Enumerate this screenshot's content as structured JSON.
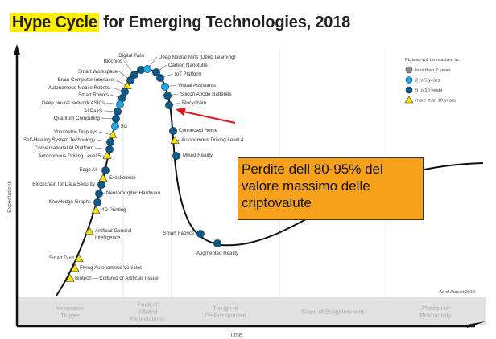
{
  "title": {
    "highlight": "Hype Cycle",
    "rest": " for Emerging Technologies, 2018"
  },
  "axes": {
    "y_label": "Expectations",
    "x_label": "Time"
  },
  "as_of": "As of August 2018",
  "phases": [
    [
      "Innovation",
      "Trigger"
    ],
    [
      "Peak of",
      "Inflated",
      "Expectations"
    ],
    [
      "Trough of",
      "Disillusionment"
    ],
    [
      "Slope of Enlightenment"
    ],
    [
      "Plateau of",
      "Productivity"
    ]
  ],
  "legend": {
    "title": "Plateau will be reached in:",
    "items": [
      {
        "label": "less than 2 years",
        "shape": "circle",
        "color": "#8a8d90"
      },
      {
        "label": "2 to 5 years",
        "shape": "circle",
        "color": "#1ea7e8"
      },
      {
        "label": "5 to 10 years",
        "shape": "circle",
        "color": "#0b5a8a"
      },
      {
        "label": "more than 10 years",
        "shape": "triangle",
        "color": "#f5e400"
      }
    ]
  },
  "technologies": [
    {
      "label": "Digital Twin",
      "plateau": "5 to 10 years"
    },
    {
      "label": "Biochips",
      "plateau": "5 to 10 years"
    },
    {
      "label": "Smart Workspace",
      "plateau": "5 to 10 years"
    },
    {
      "label": "Brain-Computer Interface",
      "plateau": "more than 10 years"
    },
    {
      "label": "Autonomous Mobile Robots",
      "plateau": "5 to 10 years"
    },
    {
      "label": "Smart Robots",
      "plateau": "5 to 10 years"
    },
    {
      "label": "Deep Neural Network ASICs",
      "plateau": "2 to 5 years"
    },
    {
      "label": "AI PaaS",
      "plateau": "5 to 10 years"
    },
    {
      "label": "Quantum Computing",
      "plateau": "5 to 10 years"
    },
    {
      "label": "5G",
      "plateau": "2 to 5 years"
    },
    {
      "label": "Volumetric Displays",
      "plateau": "more than 10 years"
    },
    {
      "label": "Self-Healing System Technology",
      "plateau": "5 to 10 years"
    },
    {
      "label": "Conversational AI Platform",
      "plateau": "5 to 10 years"
    },
    {
      "label": "Autonomous Driving Level 5",
      "plateau": "more than 10 years"
    },
    {
      "label": "Edge AI",
      "plateau": "5 to 10 years"
    },
    {
      "label": "Exoskeleton",
      "plateau": "more than 10 years"
    },
    {
      "label": "Blockchain for Data Security",
      "plateau": "5 to 10 years"
    },
    {
      "label": "Neuromorphic Hardware",
      "plateau": "5 to 10 years"
    },
    {
      "label": "Knowledge Graphs",
      "plateau": "5 to 10 years"
    },
    {
      "label": "4D Printing",
      "plateau": "more than 10 years"
    },
    {
      "label": "Artificial General Intelligence",
      "plateau": "more than 10 years"
    },
    {
      "label": "Smart Dust",
      "plateau": "more than 10 years"
    },
    {
      "label": "Flying Autonomous Vehicles",
      "plateau": "more than 10 years"
    },
    {
      "label": "Biotech — Cultured or Artificial Tissue",
      "plateau": "more than 10 years"
    },
    {
      "label": "Deep Neural Nets (Deep Learning)",
      "plateau": "2 to 5 years"
    },
    {
      "label": "Carbon Nanotube",
      "plateau": "5 to 10 years"
    },
    {
      "label": "IoT Platform",
      "plateau": "5 to 10 years"
    },
    {
      "label": "Virtual Assistants",
      "plateau": "2 to 5 years"
    },
    {
      "label": "Silicon Anode Batteries",
      "plateau": "5 to 10 years"
    },
    {
      "label": "Blockchain",
      "plateau": "5 to 10 years"
    },
    {
      "label": "Connected Home",
      "plateau": "5 to 10 years"
    },
    {
      "label": "Autonomous Driving Level 4",
      "plateau": "more than 10 years"
    },
    {
      "label": "Mixed Reality",
      "plateau": "5 to 10 years"
    },
    {
      "label": "Smart Fabrics",
      "plateau": "5 to 10 years"
    },
    {
      "label": "Augmented Reality",
      "plateau": "5 to 10 years"
    }
  ],
  "annotation": {
    "lines": [
      "Perdite dell 80-95% del",
      "valore massimo delle",
      "criptovalute"
    ],
    "box_color": "#f7a11a",
    "arrow_color": "#e0161b",
    "points_to": "Blockchain"
  }
}
